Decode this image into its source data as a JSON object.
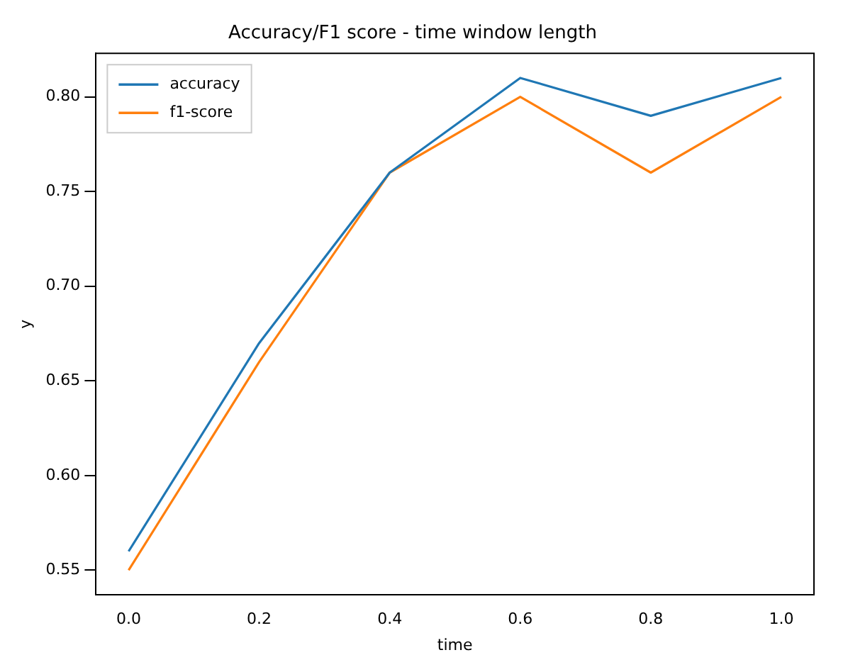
{
  "chart_data": {
    "type": "line",
    "title": "Accuracy/F1 score - time window length",
    "xlabel": "time",
    "ylabel": "y",
    "x": [
      0.0,
      0.2,
      0.4,
      0.6,
      0.8,
      1.0
    ],
    "series": [
      {
        "name": "accuracy",
        "color": "#1f77b4",
        "values": [
          0.56,
          0.67,
          0.76,
          0.81,
          0.79,
          0.81
        ]
      },
      {
        "name": "f1-score",
        "color": "#ff7f0e",
        "values": [
          0.55,
          0.66,
          0.76,
          0.8,
          0.76,
          0.8
        ]
      }
    ],
    "xlim": [
      -0.05,
      1.05
    ],
    "xticks": [
      {
        "value": 0,
        "label": "0.0"
      },
      {
        "value": 0.2,
        "label": "0.2"
      },
      {
        "value": 0.4,
        "label": "0.4"
      },
      {
        "value": 0.6,
        "label": "0.6"
      },
      {
        "value": 0.8,
        "label": "0.8"
      },
      {
        "value": 1,
        "label": "1.0"
      }
    ],
    "ylim": [
      0.537,
      0.823
    ],
    "yticks": [
      {
        "value": 0.55,
        "label": "0.55"
      },
      {
        "value": 0.6,
        "label": "0.60"
      },
      {
        "value": 0.65,
        "label": "0.65"
      },
      {
        "value": 0.7,
        "label": "0.70"
      },
      {
        "value": 0.75,
        "label": "0.75"
      },
      {
        "value": 0.8,
        "label": "0.80"
      }
    ],
    "legend": "top left",
    "grid": false,
    "marker": "none",
    "line_style": "solid"
  }
}
